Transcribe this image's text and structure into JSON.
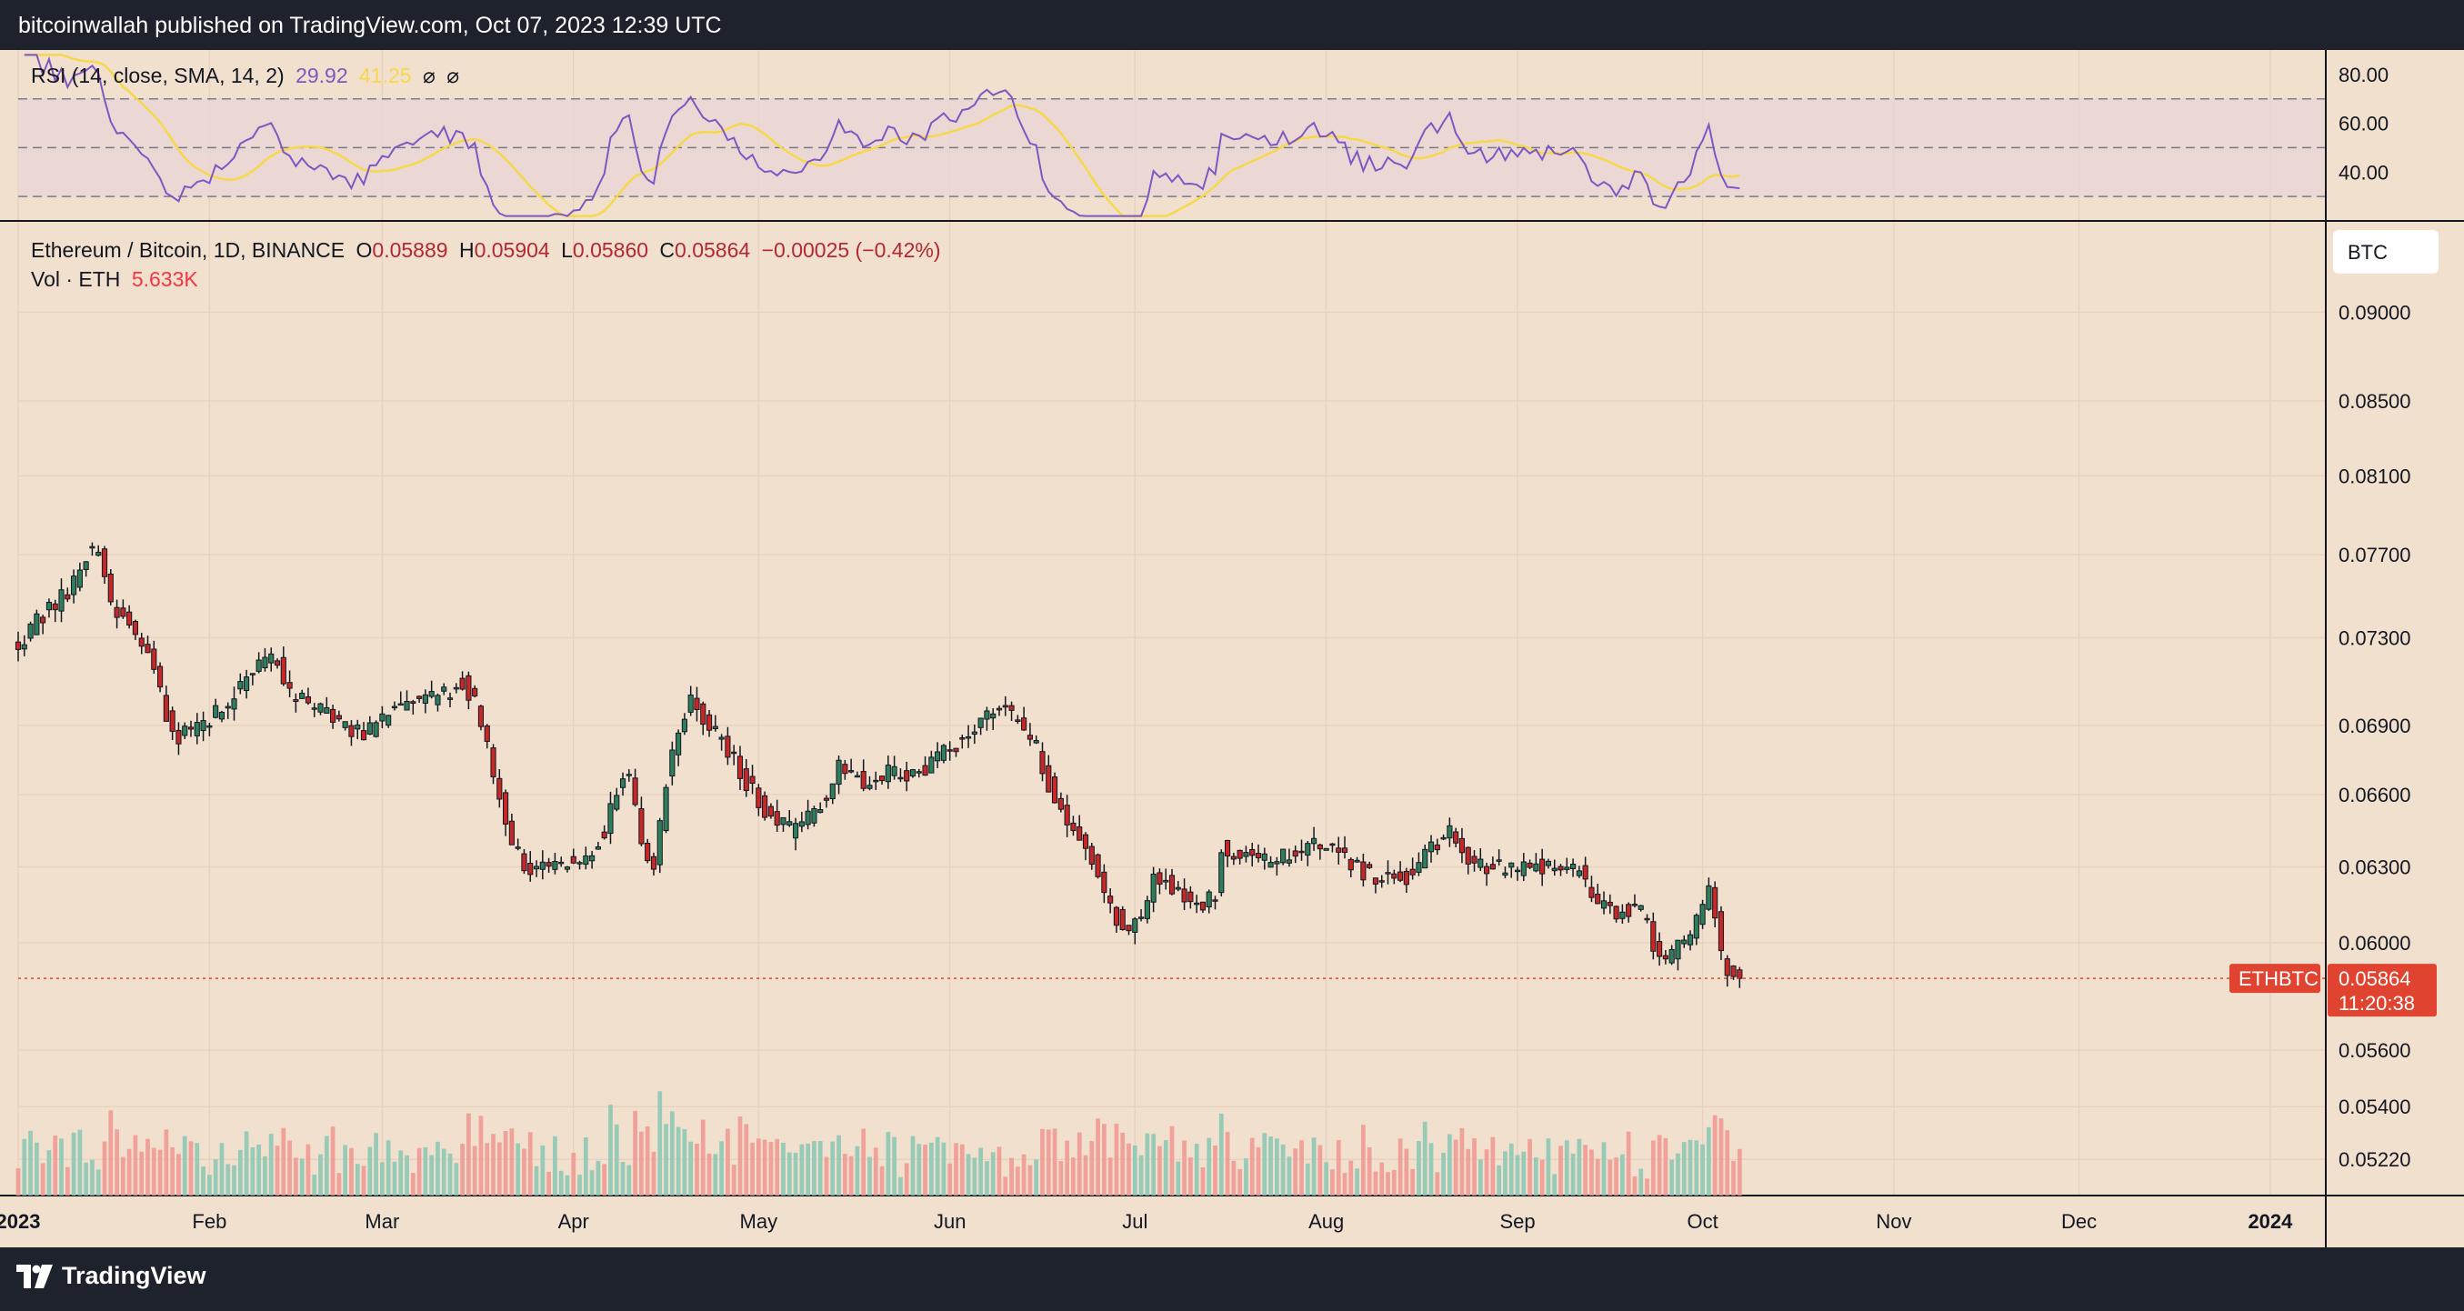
{
  "header": {
    "publisher": "bitcoinwallah published on TradingView.com, Oct 07, 2023 12:39 UTC"
  },
  "footer": {
    "brand": "TradingView"
  },
  "rsi_panel": {
    "label": "RSI (14, close, SMA, 14, 2)",
    "rsi_value": "29.92",
    "sma_value": "41.25",
    "sym1": "⌀",
    "sym2": "⌀",
    "axis_labels": [
      "80.00",
      "60.00",
      "40.00"
    ]
  },
  "main_legend": {
    "symbol": "Ethereum / Bitcoin, 1D, BINANCE",
    "open_prefix": "O",
    "open": "0.05889",
    "high_prefix": "H",
    "high": "0.05904",
    "low_prefix": "L",
    "low": "0.05860",
    "close_prefix": "C",
    "close": "0.05864",
    "change": "−0.00025 (−0.42%)",
    "vol_label": "Vol · ETH",
    "vol_value": "5.633K"
  },
  "currency_button": "BTC",
  "price_axis_labels": [
    "0.09000",
    "0.08500",
    "0.08100",
    "0.07700",
    "0.07300",
    "0.06900",
    "0.06600",
    "0.06300",
    "0.06000",
    "0.05600",
    "0.05400",
    "0.05220"
  ],
  "ticker_tag": "ETHBTC",
  "last_price_tag": "0.05864",
  "countdown": "11:20:38",
  "time_axis_labels": [
    "2023",
    "Feb",
    "Mar",
    "Apr",
    "May",
    "Jun",
    "Jul",
    "Aug",
    "Sep",
    "Oct",
    "Nov",
    "Dec",
    "2024"
  ],
  "colors": {
    "background": "#f2e0ce",
    "up": "#22ab94",
    "down": "#f23645",
    "rsi": "#7e57c2",
    "rsi_sma": "#f7d84a",
    "last_price": "#e0432f"
  },
  "chart_data": {
    "type": "candlestick",
    "symbol": "Ethereum / Bitcoin, 1D, BINANCE",
    "x_start": "2023-01-01",
    "x_end": "2024-01-10",
    "ylim_log": [
      0.051,
      0.0935
    ],
    "last_close": 0.05864,
    "price_path_key_dates": [
      {
        "date": "2023-01-01",
        "price": 0.0728
      },
      {
        "date": "2023-01-05",
        "price": 0.074
      },
      {
        "date": "2023-01-10",
        "price": 0.0755
      },
      {
        "date": "2023-01-12",
        "price": 0.077
      },
      {
        "date": "2023-01-14",
        "price": 0.0775
      },
      {
        "date": "2023-01-16",
        "price": 0.0745
      },
      {
        "date": "2023-01-18",
        "price": 0.074
      },
      {
        "date": "2023-01-21",
        "price": 0.073
      },
      {
        "date": "2023-01-24",
        "price": 0.0705
      },
      {
        "date": "2023-01-26",
        "price": 0.0685
      },
      {
        "date": "2023-01-30",
        "price": 0.0688
      },
      {
        "date": "2023-02-04",
        "price": 0.07
      },
      {
        "date": "2023-02-08",
        "price": 0.0715
      },
      {
        "date": "2023-02-12",
        "price": 0.072
      },
      {
        "date": "2023-02-14",
        "price": 0.0705
      },
      {
        "date": "2023-02-18",
        "price": 0.0698
      },
      {
        "date": "2023-02-22",
        "price": 0.0692
      },
      {
        "date": "2023-02-26",
        "price": 0.0686
      },
      {
        "date": "2023-03-02",
        "price": 0.0695
      },
      {
        "date": "2023-03-06",
        "price": 0.07
      },
      {
        "date": "2023-03-10",
        "price": 0.0702
      },
      {
        "date": "2023-03-14",
        "price": 0.071
      },
      {
        "date": "2023-03-16",
        "price": 0.07
      },
      {
        "date": "2023-03-18",
        "price": 0.068
      },
      {
        "date": "2023-03-20",
        "price": 0.066
      },
      {
        "date": "2023-03-22",
        "price": 0.064
      },
      {
        "date": "2023-03-25",
        "price": 0.0628
      },
      {
        "date": "2023-03-30",
        "price": 0.063
      },
      {
        "date": "2023-04-03",
        "price": 0.0635
      },
      {
        "date": "2023-04-06",
        "price": 0.0645
      },
      {
        "date": "2023-04-08",
        "price": 0.066
      },
      {
        "date": "2023-04-10",
        "price": 0.067
      },
      {
        "date": "2023-04-12",
        "price": 0.064
      },
      {
        "date": "2023-04-14",
        "price": 0.0628
      },
      {
        "date": "2023-04-16",
        "price": 0.0665
      },
      {
        "date": "2023-04-18",
        "price": 0.069
      },
      {
        "date": "2023-04-20",
        "price": 0.07
      },
      {
        "date": "2023-04-23",
        "price": 0.069
      },
      {
        "date": "2023-04-26",
        "price": 0.068
      },
      {
        "date": "2023-04-29",
        "price": 0.0665
      },
      {
        "date": "2023-05-03",
        "price": 0.065
      },
      {
        "date": "2023-05-06",
        "price": 0.0645
      },
      {
        "date": "2023-05-09",
        "price": 0.065
      },
      {
        "date": "2023-05-12",
        "price": 0.066
      },
      {
        "date": "2023-05-14",
        "price": 0.0675
      },
      {
        "date": "2023-05-18",
        "price": 0.0665
      },
      {
        "date": "2023-05-22",
        "price": 0.067
      },
      {
        "date": "2023-05-26",
        "price": 0.0668
      },
      {
        "date": "2023-05-30",
        "price": 0.0675
      },
      {
        "date": "2023-06-03",
        "price": 0.0685
      },
      {
        "date": "2023-06-06",
        "price": 0.0692
      },
      {
        "date": "2023-06-09",
        "price": 0.07
      },
      {
        "date": "2023-06-12",
        "price": 0.069
      },
      {
        "date": "2023-06-15",
        "price": 0.068
      },
      {
        "date": "2023-06-17",
        "price": 0.0665
      },
      {
        "date": "2023-06-20",
        "price": 0.0648
      },
      {
        "date": "2023-06-23",
        "price": 0.064
      },
      {
        "date": "2023-06-26",
        "price": 0.062
      },
      {
        "date": "2023-06-28",
        "price": 0.061
      },
      {
        "date": "2023-06-30",
        "price": 0.0605
      },
      {
        "date": "2023-07-02",
        "price": 0.0608
      },
      {
        "date": "2023-07-04",
        "price": 0.0628
      },
      {
        "date": "2023-07-06",
        "price": 0.0625
      },
      {
        "date": "2023-07-09",
        "price": 0.0618
      },
      {
        "date": "2023-07-12",
        "price": 0.0615
      },
      {
        "date": "2023-07-14",
        "price": 0.0618
      },
      {
        "date": "2023-07-15",
        "price": 0.0638
      },
      {
        "date": "2023-07-18",
        "price": 0.0635
      },
      {
        "date": "2023-07-22",
        "price": 0.0632
      },
      {
        "date": "2023-07-26",
        "price": 0.0634
      },
      {
        "date": "2023-07-30",
        "price": 0.0638
      },
      {
        "date": "2023-08-03",
        "price": 0.0635
      },
      {
        "date": "2023-08-07",
        "price": 0.0628
      },
      {
        "date": "2023-08-11",
        "price": 0.0625
      },
      {
        "date": "2023-08-15",
        "price": 0.0627
      },
      {
        "date": "2023-08-18",
        "price": 0.0638
      },
      {
        "date": "2023-08-21",
        "price": 0.0643
      },
      {
        "date": "2023-08-24",
        "price": 0.0632
      },
      {
        "date": "2023-08-28",
        "price": 0.063
      },
      {
        "date": "2023-09-01",
        "price": 0.0628
      },
      {
        "date": "2023-09-04",
        "price": 0.063
      },
      {
        "date": "2023-09-08",
        "price": 0.0632
      },
      {
        "date": "2023-09-11",
        "price": 0.0628
      },
      {
        "date": "2023-09-14",
        "price": 0.0615
      },
      {
        "date": "2023-09-17",
        "price": 0.0612
      },
      {
        "date": "2023-09-21",
        "price": 0.0612
      },
      {
        "date": "2023-09-23",
        "price": 0.06
      },
      {
        "date": "2023-09-25",
        "price": 0.0595
      },
      {
        "date": "2023-09-28",
        "price": 0.06
      },
      {
        "date": "2023-10-01",
        "price": 0.0612
      },
      {
        "date": "2023-10-02",
        "price": 0.062
      },
      {
        "date": "2023-10-03",
        "price": 0.061
      },
      {
        "date": "2023-10-04",
        "price": 0.0596
      },
      {
        "date": "2023-10-05",
        "price": 0.059
      },
      {
        "date": "2023-10-07",
        "price": 0.05864
      }
    ],
    "rsi": {
      "period": 14,
      "sma_period": 14,
      "last_rsi": 29.92,
      "last_sma": 41.25,
      "levels": [
        70,
        50,
        30
      ]
    }
  }
}
